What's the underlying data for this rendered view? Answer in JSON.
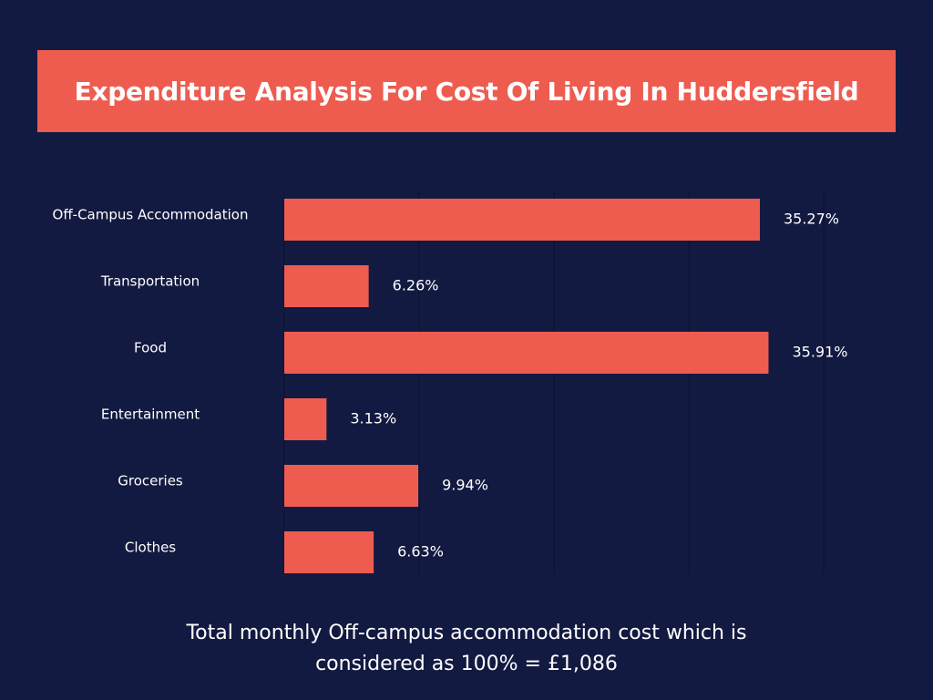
{
  "title": "Expenditure Analysis For Cost Of Living In Huddersfield",
  "footnote": {
    "line1": "Total monthly Off-campus accommodation cost which is",
    "line2": "considered as 100% = £1,086"
  },
  "colors": {
    "background": "#131a41",
    "accent": "#ee5c50",
    "gridline": "#0b1030",
    "text": "#ffffff"
  },
  "chart_data": {
    "type": "bar",
    "orientation": "horizontal",
    "categories": [
      "Off-Campus Accommodation",
      "Transportation",
      "Food",
      "Entertainment",
      "Groceries",
      "Clothes"
    ],
    "values": [
      35.27,
      6.26,
      35.91,
      3.13,
      9.94,
      6.63
    ],
    "value_labels": [
      "35.27%",
      "6.26%",
      "35.91%",
      "3.13%",
      "9.94%",
      "6.63%"
    ],
    "xlim": [
      0,
      40
    ],
    "grid": true,
    "legend": "none"
  }
}
